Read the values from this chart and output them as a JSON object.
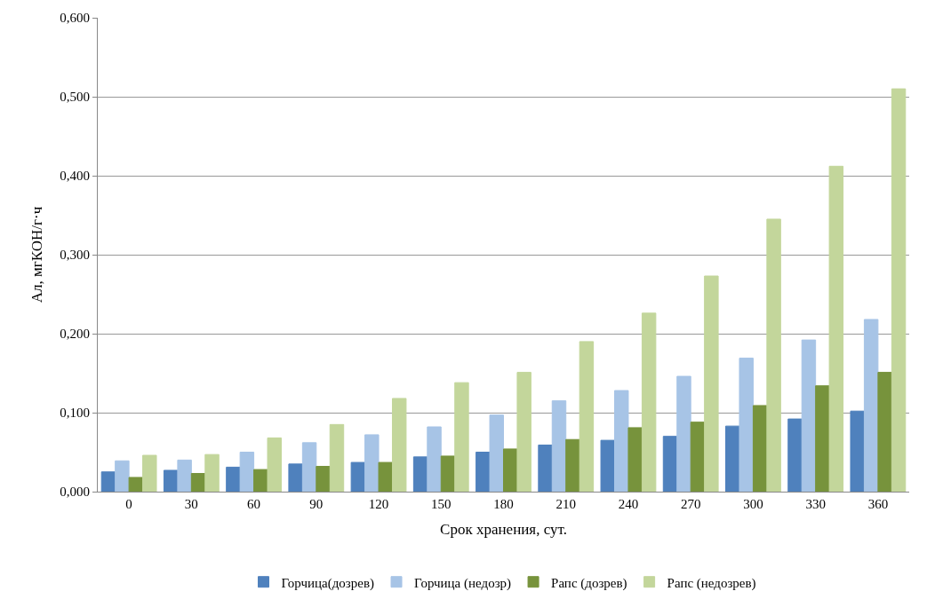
{
  "chart_data": {
    "type": "bar",
    "xlabel": "Срок хранения, сут.",
    "ylabel": "Ал, мгКОН/г·ч",
    "categories": [
      "0",
      "30",
      "60",
      "90",
      "120",
      "150",
      "180",
      "210",
      "240",
      "270",
      "300",
      "330",
      "360"
    ],
    "series": [
      {
        "name": "Горчица(дозрев)",
        "color": "#4f81bd",
        "values": [
          0.025,
          0.027,
          0.031,
          0.035,
          0.037,
          0.044,
          0.05,
          0.059,
          0.065,
          0.07,
          0.083,
          0.092,
          0.102
        ]
      },
      {
        "name": "Горчица (недозр)",
        "color": "#a7c4e6",
        "values": [
          0.039,
          0.04,
          0.05,
          0.062,
          0.072,
          0.082,
          0.097,
          0.115,
          0.128,
          0.146,
          0.169,
          0.192,
          0.218
        ]
      },
      {
        "name": "Рапс (дозрев)",
        "color": "#77933c",
        "values": [
          0.018,
          0.023,
          0.028,
          0.032,
          0.037,
          0.045,
          0.054,
          0.066,
          0.081,
          0.088,
          0.109,
          0.134,
          0.151
        ]
      },
      {
        "name": "Рапс (недозрев)",
        "color": "#c3d69b",
        "values": [
          0.046,
          0.047,
          0.068,
          0.085,
          0.118,
          0.138,
          0.151,
          0.19,
          0.226,
          0.273,
          0.345,
          0.412,
          0.51
        ]
      }
    ],
    "ylim": [
      0,
      0.6
    ],
    "yticks": [
      {
        "value": 0,
        "label": "0,000"
      },
      {
        "value": 0.1,
        "label": "0,100"
      },
      {
        "value": 0.2,
        "label": "0,200"
      },
      {
        "value": 0.3,
        "label": "0,300"
      },
      {
        "value": 0.4,
        "label": "0,400"
      },
      {
        "value": 0.5,
        "label": "0,500"
      },
      {
        "value": 0.6,
        "label": "0,600"
      }
    ],
    "grid": "y",
    "legend": "bottom"
  }
}
